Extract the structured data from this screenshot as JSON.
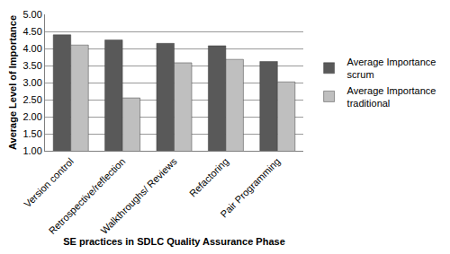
{
  "chart_data": {
    "type": "bar",
    "x_label": "SE practices in SDLC Quality Assurance Phase",
    "y_label": "Average Level of Importance",
    "categories": [
      "Version control",
      "Retrospective/reflection",
      "Walkthroughs/ Reviews",
      "Refactoring",
      "Pair Programming"
    ],
    "series": [
      {
        "name": "Average Importance scrum",
        "color": "#595959",
        "values": [
          4.4,
          4.25,
          4.15,
          4.08,
          3.62
        ]
      },
      {
        "name": "Average Importance traditional",
        "color": "#bfbfbf",
        "values": [
          4.1,
          2.55,
          3.58,
          3.68,
          3.02
        ]
      }
    ],
    "ylim": [
      1,
      5
    ],
    "yticks": [
      {
        "value": 1,
        "label": "1.00"
      },
      {
        "value": 1.5,
        "label": "1.50"
      },
      {
        "value": 2,
        "label": "2.00"
      },
      {
        "value": 2.5,
        "label": "2.50"
      },
      {
        "value": 3,
        "label": "3.00"
      },
      {
        "value": 3.5,
        "label": "3.50"
      },
      {
        "value": 4,
        "label": "4.00"
      },
      {
        "value": 4.5,
        "label": "4.50"
      },
      {
        "value": 5,
        "label": "5.00"
      }
    ],
    "grid": true,
    "legend": "right"
  }
}
